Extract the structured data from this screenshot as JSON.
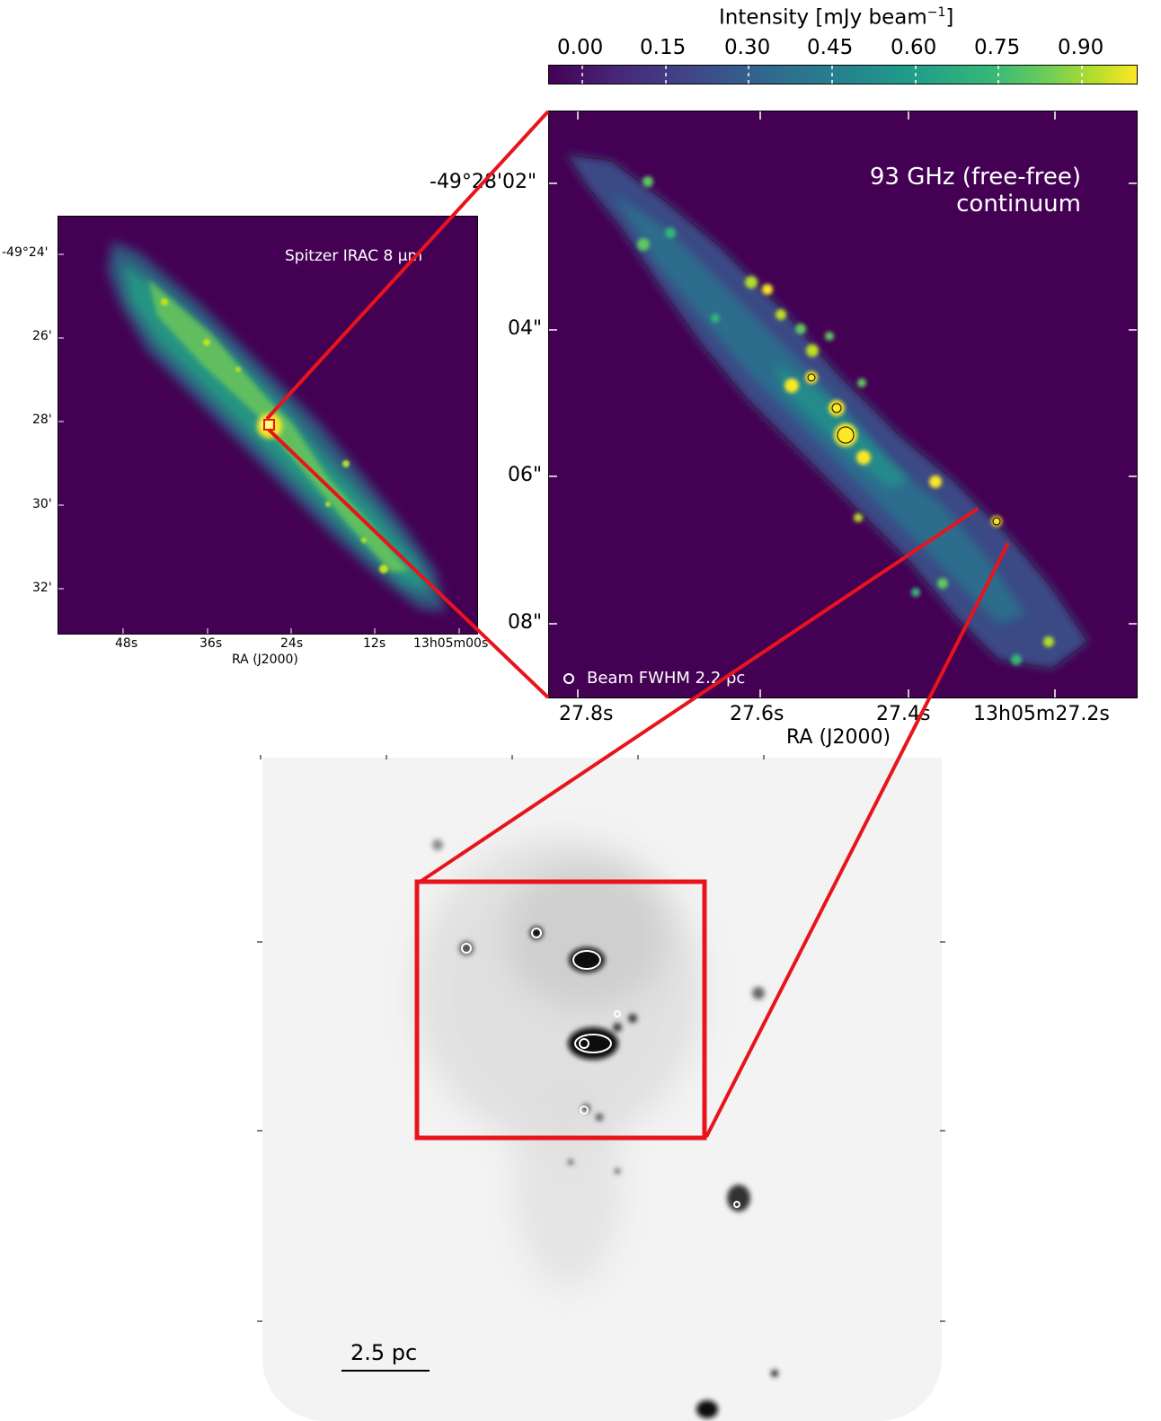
{
  "colorbar": {
    "label": "Intensity [mJy beam",
    "label_sup": "−1",
    "label_close": "]",
    "ticks": [
      "0.00",
      "0.15",
      "0.30",
      "0.45",
      "0.60",
      "0.75",
      "0.90"
    ],
    "colormap": "viridis"
  },
  "left_panel": {
    "title": "Spitzer IRAC 8 μm",
    "y_ticks": [
      "-49°24'",
      "26'",
      "28'",
      "30'",
      "32'"
    ],
    "x_ticks": [
      "48s",
      "36s",
      "24s",
      "12s",
      "13h05m00s"
    ],
    "xlabel": "RA (J2000)",
    "background_color": "#440154"
  },
  "right_panel": {
    "title_line1": "93 GHz (free-free)",
    "title_line2": "continuum",
    "y_ticks": [
      "-49°28'02\"",
      "04\"",
      "06\"",
      "08\""
    ],
    "x_ticks": [
      "27.8s",
      "27.6s",
      "27.4s",
      "13h05m27.2s"
    ],
    "xlabel": "RA (J2000)",
    "beam_label": "Beam FWHM 2.2 pc"
  },
  "bottom_panel": {
    "scale_bar_label": "2.5 pc",
    "colormap": "greys"
  },
  "zoom_color": "#e8141c"
}
